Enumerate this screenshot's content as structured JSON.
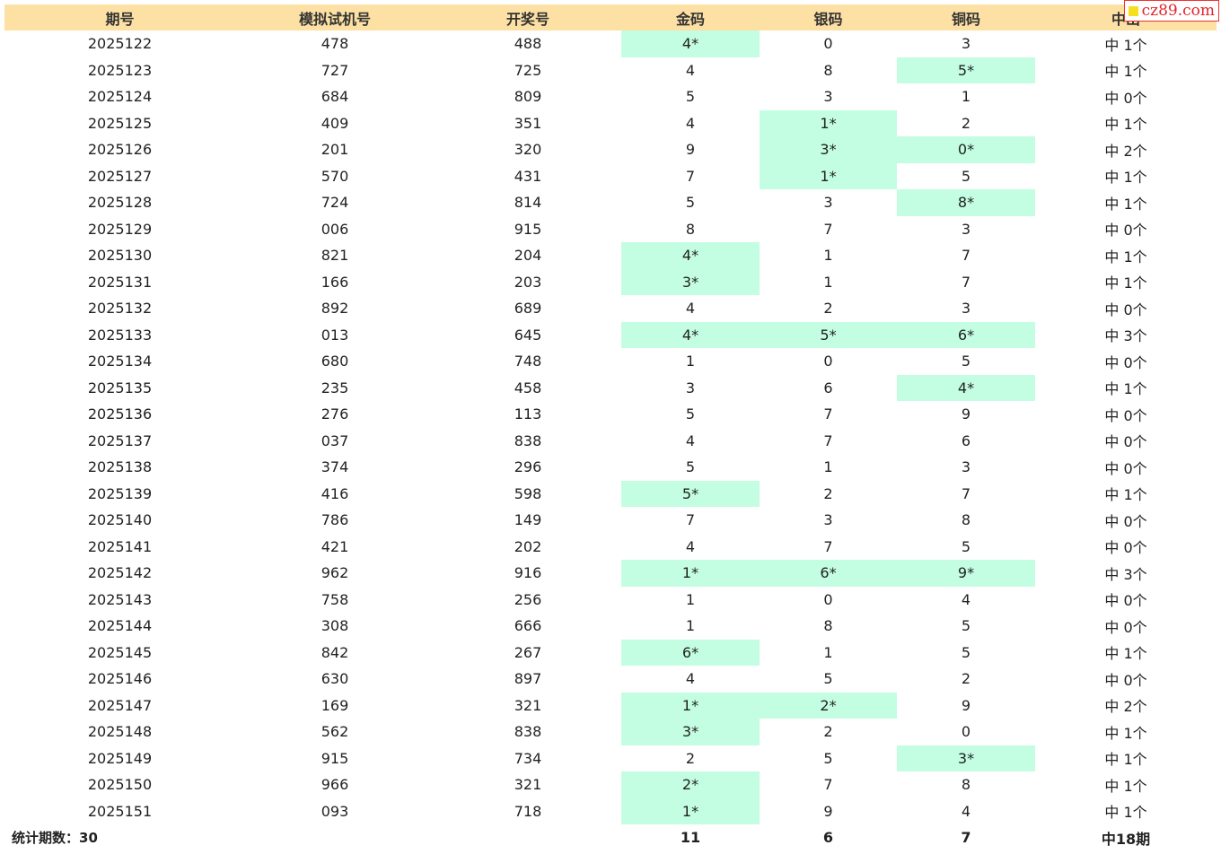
{
  "headers": [
    "期号",
    "模拟试机号",
    "开奖号",
    "金码",
    "银码",
    "铜码",
    "中出"
  ],
  "rows": [
    {
      "issue": "2025122",
      "sim": "478",
      "draw": "488",
      "gold": "4*",
      "silver": "0",
      "bronze": "3",
      "result": "中 1个",
      "hit": [
        true,
        false,
        false
      ]
    },
    {
      "issue": "2025123",
      "sim": "727",
      "draw": "725",
      "gold": "4",
      "silver": "8",
      "bronze": "5*",
      "result": "中 1个",
      "hit": [
        false,
        false,
        true
      ]
    },
    {
      "issue": "2025124",
      "sim": "684",
      "draw": "809",
      "gold": "5",
      "silver": "3",
      "bronze": "1",
      "result": "中 0个",
      "hit": [
        false,
        false,
        false
      ]
    },
    {
      "issue": "2025125",
      "sim": "409",
      "draw": "351",
      "gold": "4",
      "silver": "1*",
      "bronze": "2",
      "result": "中 1个",
      "hit": [
        false,
        true,
        false
      ]
    },
    {
      "issue": "2025126",
      "sim": "201",
      "draw": "320",
      "gold": "9",
      "silver": "3*",
      "bronze": "0*",
      "result": "中 2个",
      "hit": [
        false,
        true,
        true
      ]
    },
    {
      "issue": "2025127",
      "sim": "570",
      "draw": "431",
      "gold": "7",
      "silver": "1*",
      "bronze": "5",
      "result": "中 1个",
      "hit": [
        false,
        true,
        false
      ]
    },
    {
      "issue": "2025128",
      "sim": "724",
      "draw": "814",
      "gold": "5",
      "silver": "3",
      "bronze": "8*",
      "result": "中 1个",
      "hit": [
        false,
        false,
        true
      ]
    },
    {
      "issue": "2025129",
      "sim": "006",
      "draw": "915",
      "gold": "8",
      "silver": "7",
      "bronze": "3",
      "result": "中 0个",
      "hit": [
        false,
        false,
        false
      ]
    },
    {
      "issue": "2025130",
      "sim": "821",
      "draw": "204",
      "gold": "4*",
      "silver": "1",
      "bronze": "7",
      "result": "中 1个",
      "hit": [
        true,
        false,
        false
      ]
    },
    {
      "issue": "2025131",
      "sim": "166",
      "draw": "203",
      "gold": "3*",
      "silver": "1",
      "bronze": "7",
      "result": "中 1个",
      "hit": [
        true,
        false,
        false
      ]
    },
    {
      "issue": "2025132",
      "sim": "892",
      "draw": "689",
      "gold": "4",
      "silver": "2",
      "bronze": "3",
      "result": "中 0个",
      "hit": [
        false,
        false,
        false
      ]
    },
    {
      "issue": "2025133",
      "sim": "013",
      "draw": "645",
      "gold": "4*",
      "silver": "5*",
      "bronze": "6*",
      "result": "中 3个",
      "hit": [
        true,
        true,
        true
      ]
    },
    {
      "issue": "2025134",
      "sim": "680",
      "draw": "748",
      "gold": "1",
      "silver": "0",
      "bronze": "5",
      "result": "中 0个",
      "hit": [
        false,
        false,
        false
      ]
    },
    {
      "issue": "2025135",
      "sim": "235",
      "draw": "458",
      "gold": "3",
      "silver": "6",
      "bronze": "4*",
      "result": "中 1个",
      "hit": [
        false,
        false,
        true
      ]
    },
    {
      "issue": "2025136",
      "sim": "276",
      "draw": "113",
      "gold": "5",
      "silver": "7",
      "bronze": "9",
      "result": "中 0个",
      "hit": [
        false,
        false,
        false
      ]
    },
    {
      "issue": "2025137",
      "sim": "037",
      "draw": "838",
      "gold": "4",
      "silver": "7",
      "bronze": "6",
      "result": "中 0个",
      "hit": [
        false,
        false,
        false
      ]
    },
    {
      "issue": "2025138",
      "sim": "374",
      "draw": "296",
      "gold": "5",
      "silver": "1",
      "bronze": "3",
      "result": "中 0个",
      "hit": [
        false,
        false,
        false
      ]
    },
    {
      "issue": "2025139",
      "sim": "416",
      "draw": "598",
      "gold": "5*",
      "silver": "2",
      "bronze": "7",
      "result": "中 1个",
      "hit": [
        true,
        false,
        false
      ]
    },
    {
      "issue": "2025140",
      "sim": "786",
      "draw": "149",
      "gold": "7",
      "silver": "3",
      "bronze": "8",
      "result": "中 0个",
      "hit": [
        false,
        false,
        false
      ]
    },
    {
      "issue": "2025141",
      "sim": "421",
      "draw": "202",
      "gold": "4",
      "silver": "7",
      "bronze": "5",
      "result": "中 0个",
      "hit": [
        false,
        false,
        false
      ]
    },
    {
      "issue": "2025142",
      "sim": "962",
      "draw": "916",
      "gold": "1*",
      "silver": "6*",
      "bronze": "9*",
      "result": "中 3个",
      "hit": [
        true,
        true,
        true
      ]
    },
    {
      "issue": "2025143",
      "sim": "758",
      "draw": "256",
      "gold": "1",
      "silver": "0",
      "bronze": "4",
      "result": "中 0个",
      "hit": [
        false,
        false,
        false
      ]
    },
    {
      "issue": "2025144",
      "sim": "308",
      "draw": "666",
      "gold": "1",
      "silver": "8",
      "bronze": "5",
      "result": "中 0个",
      "hit": [
        false,
        false,
        false
      ]
    },
    {
      "issue": "2025145",
      "sim": "842",
      "draw": "267",
      "gold": "6*",
      "silver": "1",
      "bronze": "5",
      "result": "中 1个",
      "hit": [
        true,
        false,
        false
      ]
    },
    {
      "issue": "2025146",
      "sim": "630",
      "draw": "897",
      "gold": "4",
      "silver": "5",
      "bronze": "2",
      "result": "中 0个",
      "hit": [
        false,
        false,
        false
      ]
    },
    {
      "issue": "2025147",
      "sim": "169",
      "draw": "321",
      "gold": "1*",
      "silver": "2*",
      "bronze": "9",
      "result": "中 2个",
      "hit": [
        true,
        true,
        false
      ]
    },
    {
      "issue": "2025148",
      "sim": "562",
      "draw": "838",
      "gold": "3*",
      "silver": "2",
      "bronze": "0",
      "result": "中 1个",
      "hit": [
        true,
        false,
        false
      ]
    },
    {
      "issue": "2025149",
      "sim": "915",
      "draw": "734",
      "gold": "2",
      "silver": "5",
      "bronze": "3*",
      "result": "中 1个",
      "hit": [
        false,
        false,
        true
      ]
    },
    {
      "issue": "2025150",
      "sim": "966",
      "draw": "321",
      "gold": "2*",
      "silver": "7",
      "bronze": "8",
      "result": "中 1个",
      "hit": [
        true,
        false,
        false
      ]
    },
    {
      "issue": "2025151",
      "sim": "093",
      "draw": "718",
      "gold": "1*",
      "silver": "9",
      "bronze": "4",
      "result": "中 1个",
      "hit": [
        true,
        false,
        false
      ]
    }
  ],
  "footer": {
    "stat_label": "统计期数：30",
    "gold_total": "11",
    "silver_total": "6",
    "bronze_total": "7",
    "result_total": "中18期"
  },
  "watermark": {
    "text": "cz89.com"
  },
  "colors": {
    "header_bg": "#fde0a3",
    "hit_bg": "#c3fde2",
    "watermark": "#e0242a"
  }
}
